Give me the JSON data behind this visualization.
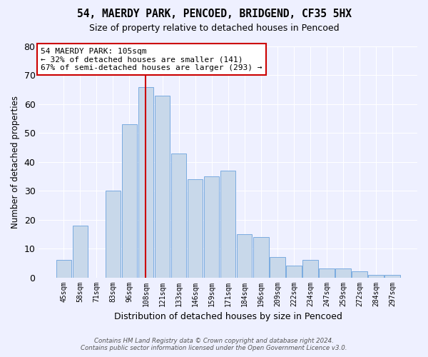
{
  "title1": "54, MAERDY PARK, PENCOED, BRIDGEND, CF35 5HX",
  "title2": "Size of property relative to detached houses in Pencoed",
  "xlabel": "Distribution of detached houses by size in Pencoed",
  "ylabel": "Number of detached properties",
  "categories": [
    "45sqm",
    "58sqm",
    "71sqm",
    "83sqm",
    "96sqm",
    "108sqm",
    "121sqm",
    "133sqm",
    "146sqm",
    "159sqm",
    "171sqm",
    "184sqm",
    "196sqm",
    "209sqm",
    "222sqm",
    "234sqm",
    "247sqm",
    "259sqm",
    "272sqm",
    "284sqm",
    "297sqm"
  ],
  "values": [
    6,
    18,
    0,
    30,
    53,
    66,
    63,
    43,
    34,
    35,
    37,
    15,
    14,
    7,
    4,
    6,
    3,
    3,
    2,
    1,
    1
  ],
  "bar_color": "#c8d8ea",
  "bar_edge_color": "#7aabe0",
  "vline_x_idx": 5,
  "vline_color": "#cc0000",
  "annotation_text": "54 MAERDY PARK: 105sqm\n← 32% of detached houses are smaller (141)\n67% of semi-detached houses are larger (293) →",
  "annotation_box_color": "white",
  "annotation_box_edge": "#cc0000",
  "ylim": [
    0,
    80
  ],
  "yticks": [
    0,
    10,
    20,
    30,
    40,
    50,
    60,
    70,
    80
  ],
  "footer1": "Contains HM Land Registry data © Crown copyright and database right 2024.",
  "footer2": "Contains public sector information licensed under the Open Government Licence v3.0.",
  "background_color": "#eef0ff"
}
